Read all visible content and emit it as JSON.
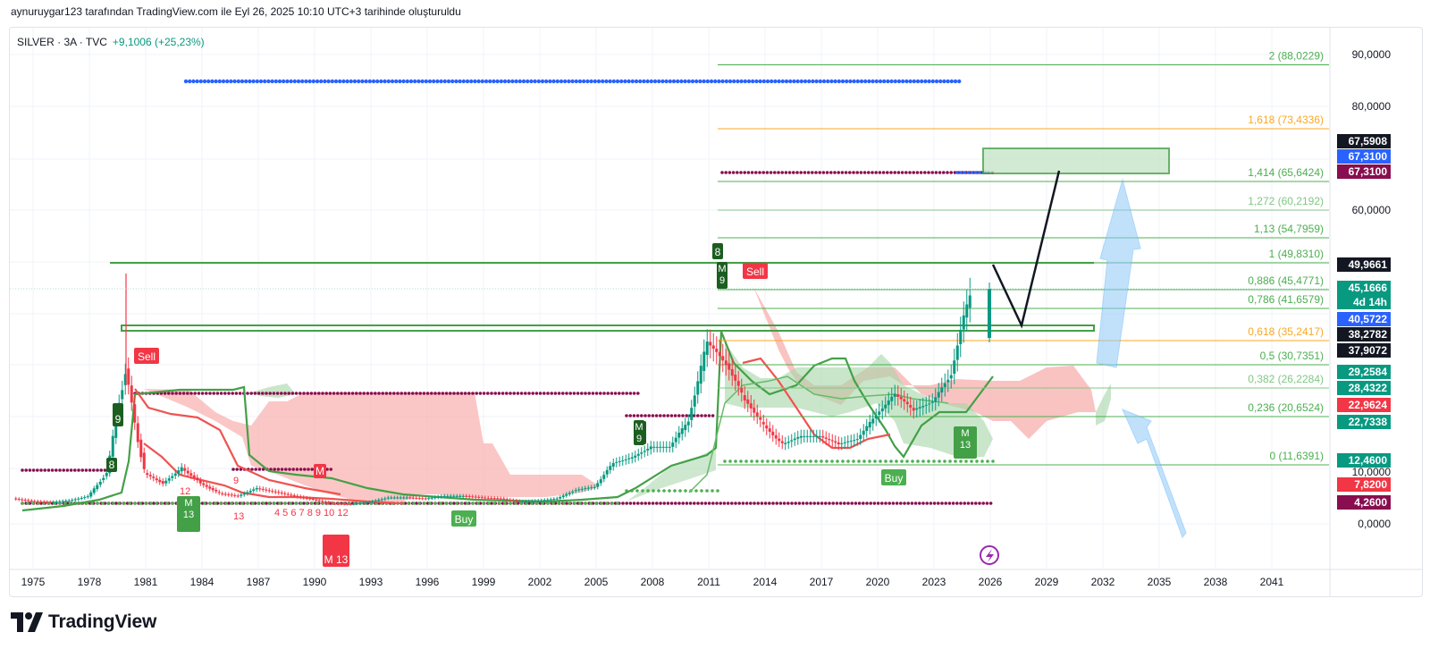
{
  "header": {
    "caption": "aynuruygar123 tarafından TradingView.com ile Eyl 26, 2025 10:10 UTC+3 tarihinde oluşturuldu"
  },
  "symbol_bar": {
    "label": "SILVER · 3A · TVC",
    "change": "+9,1006 (+25,23%)"
  },
  "brand": {
    "name": "TradingView"
  },
  "chart_data": {
    "type": "candlestick",
    "x_ticks": [
      "1975",
      "1978",
      "1981",
      "1984",
      "1987",
      "1990",
      "1993",
      "1996",
      "1999",
      "2002",
      "2005",
      "2008",
      "2011",
      "2014",
      "2017",
      "2020",
      "2023",
      "2026",
      "2029",
      "2032",
      "2035",
      "2038",
      "2041"
    ],
    "y_ticks": [
      "90,0000",
      "80,0000",
      "60,0000",
      "10,0000",
      "0,0000"
    ],
    "series": [
      {
        "points": [
          [
            1974,
            5
          ],
          [
            1975,
            4.5
          ],
          [
            1976,
            4.3
          ],
          [
            1977,
            4.6
          ],
          [
            1978,
            5.4
          ],
          [
            1979,
            10
          ],
          [
            1980,
            30
          ],
          [
            1981,
            10
          ],
          [
            1982,
            8
          ],
          [
            1983,
            11
          ],
          [
            1984,
            8
          ],
          [
            1985,
            6
          ],
          [
            1986,
            5.5
          ],
          [
            1987,
            7
          ],
          [
            1988,
            6.3
          ],
          [
            1989,
            5.5
          ],
          [
            1990,
            4.8
          ],
          [
            1991,
            4
          ],
          [
            1992,
            3.9
          ],
          [
            1993,
            4.3
          ],
          [
            1994,
            5.2
          ],
          [
            1995,
            5.2
          ],
          [
            1996,
            5
          ],
          [
            1997,
            5.5
          ],
          [
            1998,
            5.5
          ],
          [
            1999,
            5.2
          ],
          [
            2000,
            5
          ],
          [
            2001,
            4.4
          ],
          [
            2002,
            4.6
          ],
          [
            2003,
            5
          ],
          [
            2004,
            6.7
          ],
          [
            2005,
            7.3
          ],
          [
            2006,
            12
          ],
          [
            2007,
            13
          ],
          [
            2008,
            15
          ],
          [
            2009,
            15
          ],
          [
            2010,
            20
          ],
          [
            2011,
            35
          ],
          [
            2012,
            31
          ],
          [
            2013,
            24
          ],
          [
            2014,
            19
          ],
          [
            2015,
            15.5
          ],
          [
            2016,
            17
          ],
          [
            2017,
            17
          ],
          [
            2018,
            15.5
          ],
          [
            2019,
            16.5
          ],
          [
            2020,
            21
          ],
          [
            2021,
            25
          ],
          [
            2022,
            22
          ],
          [
            2023,
            23.5
          ],
          [
            2024,
            29
          ],
          [
            2025,
            45
          ]
        ]
      }
    ],
    "fibonacci": [
      {
        "label": "2 (88,0229)",
        "value": 88.0229,
        "color": "#4caf50"
      },
      {
        "label": "1,618 (73,4336)",
        "value": 73.4336,
        "color": "#f9a825"
      },
      {
        "label": "1,414 (65,6424)",
        "value": 65.6424,
        "color": "#4caf50"
      },
      {
        "label": "1,272 (60,2192)",
        "value": 60.2192,
        "color": "#81c784"
      },
      {
        "label": "1,13 (54,7959)",
        "value": 54.7959,
        "color": "#4caf50"
      },
      {
        "label": "1 (49,8310)",
        "value": 49.831,
        "color": "#4caf50"
      },
      {
        "label": "0,886 (45,4771)",
        "value": 45.4771,
        "color": "#4caf50"
      },
      {
        "label": "0,786 (41,6579)",
        "value": 41.6579,
        "color": "#4caf50"
      },
      {
        "label": "0,618 (35,2417)",
        "value": 35.2417,
        "color": "#f9a825"
      },
      {
        "label": "0,5 (30,7351)",
        "value": 30.7351,
        "color": "#4caf50"
      },
      {
        "label": "0,382 (26,2284)",
        "value": 26.2284,
        "color": "#81c784"
      },
      {
        "label": "0,236 (20,6524)",
        "value": 20.6524,
        "color": "#4caf50"
      },
      {
        "label": "0 (11,6391)",
        "value": 11.6391,
        "color": "#4caf50"
      }
    ],
    "price_tags": [
      {
        "text": "67,5908",
        "bg": "#131722"
      },
      {
        "text": "67,3100",
        "bg": "#2962ff"
      },
      {
        "text": "67,3100",
        "bg": "#880e4f"
      },
      {
        "text": "49,9661",
        "bg": "#131722"
      },
      {
        "text": "45,1666",
        "bg": "#089981"
      },
      {
        "text": "4d 14h",
        "bg": "#089981"
      },
      {
        "text": "40,5722",
        "bg": "#2962ff"
      },
      {
        "text": "38,2782",
        "bg": "#131722"
      },
      {
        "text": "37,9072",
        "bg": "#131722"
      },
      {
        "text": "29,2584",
        "bg": "#089981"
      },
      {
        "text": "28,4322",
        "bg": "#089981"
      },
      {
        "text": "22,9624",
        "bg": "#f23645"
      },
      {
        "text": "22,7338",
        "bg": "#089981"
      },
      {
        "text": "12,4600",
        "bg": "#089981"
      },
      {
        "text": "7,8200",
        "bg": "#f23645"
      },
      {
        "text": "4,2600",
        "bg": "#880e4f"
      }
    ],
    "markers": [
      {
        "text": "Sell",
        "color": "#f23645"
      },
      {
        "text": "Sell",
        "color": "#f23645"
      },
      {
        "text": "Buy",
        "color": "#4caf50"
      },
      {
        "text": "Buy",
        "color": "#4caf50"
      },
      {
        "text": "9",
        "color": "#1b5e20"
      },
      {
        "text": "9",
        "color": "#1b5e20"
      },
      {
        "text": "8",
        "color": "#1b5e20"
      },
      {
        "text": "8",
        "color": "#1b5e20"
      },
      {
        "text": "M 13",
        "color": "#43a047"
      },
      {
        "text": "M 13",
        "color": "#f23645"
      },
      {
        "text": "M 13",
        "color": "#43a047"
      },
      {
        "text": "M 9",
        "color": "#1b5e20"
      },
      {
        "text": "M 9",
        "color": "#1b5e20"
      },
      {
        "text": "M",
        "color": "#f23645"
      },
      {
        "text": "9",
        "color": "#f23645"
      },
      {
        "text": "12",
        "color": "#f23645"
      },
      {
        "text": "13",
        "color": "#f23645"
      },
      {
        "text": "4  5 6 7 8  9 10 12",
        "color": "#f23645"
      }
    ],
    "colors": {
      "up": "#089981",
      "down": "#f23645",
      "cloud_bear": "#f7a9a8",
      "cloud_bull": "#a5d6a7",
      "dots_maroon": "#880e4f",
      "dots_blue": "#2962ff",
      "dots_green": "#4caf50",
      "arrow": "#90caf9"
    }
  }
}
